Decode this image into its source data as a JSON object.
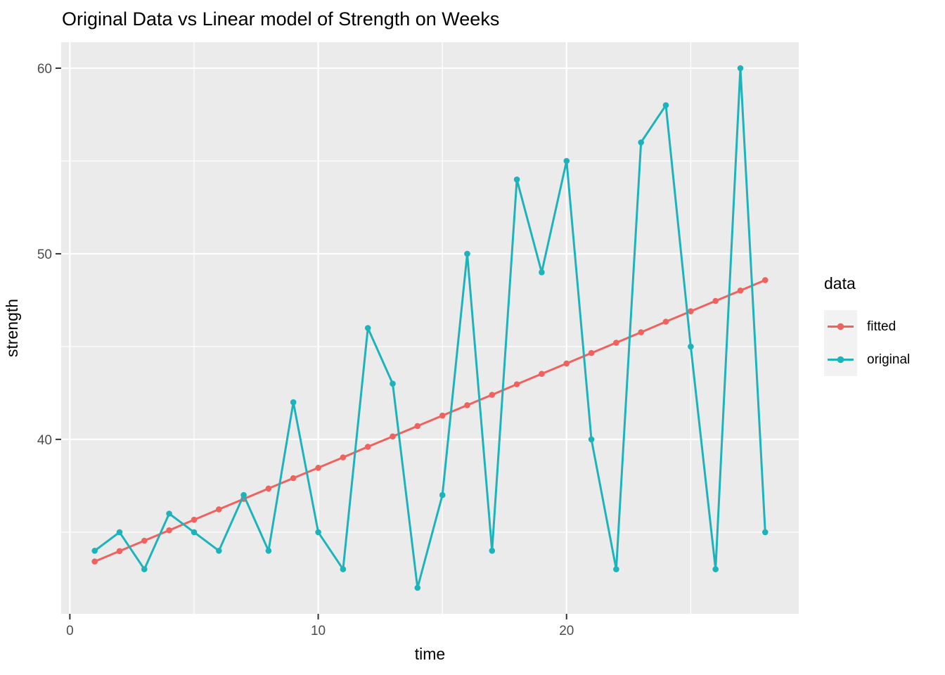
{
  "chart_data": {
    "type": "line",
    "title": "Original Data vs Linear model of Strength on Weeks",
    "xlabel": "time",
    "ylabel": "strength",
    "x": [
      1,
      2,
      3,
      4,
      5,
      6,
      7,
      8,
      9,
      10,
      11,
      12,
      13,
      14,
      15,
      16,
      17,
      18,
      19,
      20,
      21,
      22,
      23,
      24,
      25,
      26,
      27,
      28
    ],
    "series": [
      {
        "name": "fitted",
        "color": "#F0625E",
        "values": [
          33.42,
          33.98,
          34.54,
          35.1,
          35.67,
          36.23,
          36.79,
          37.35,
          37.91,
          38.47,
          39.03,
          39.6,
          40.16,
          40.72,
          41.28,
          41.84,
          42.4,
          42.97,
          43.53,
          44.09,
          44.65,
          45.21,
          45.77,
          46.34,
          46.9,
          47.46,
          48.02,
          48.58
        ]
      },
      {
        "name": "original",
        "color": "#1CB4BA",
        "values": [
          34,
          35,
          33,
          36,
          35,
          34,
          37,
          34,
          42,
          35,
          33,
          46,
          43,
          32,
          37,
          50,
          34,
          54,
          49,
          55,
          40,
          33,
          56,
          58,
          45,
          33,
          60,
          35
        ]
      }
    ],
    "legend": {
      "title": "data",
      "position": "right",
      "entries": [
        "fitted",
        "original"
      ]
    },
    "axes": {
      "x_ticks": [
        0,
        10,
        20
      ],
      "x_minor_ticks": [
        5,
        15,
        25
      ],
      "y_ticks": [
        40,
        50,
        60
      ],
      "y_minor_ticks": [
        35,
        45,
        55
      ],
      "xlim": [
        -0.35,
        29.35
      ],
      "ylim": [
        30.6,
        61.4
      ],
      "grid": "major-minor-white"
    },
    "style": {
      "panel_bg": "#EBEBEB",
      "grid_color": "#FFFFFF",
      "tick_mark_color": "#333333",
      "tick_label_color": "#4D4D4D",
      "text_color": "#000000",
      "legend_key_bg": "#F2F2F2"
    }
  }
}
